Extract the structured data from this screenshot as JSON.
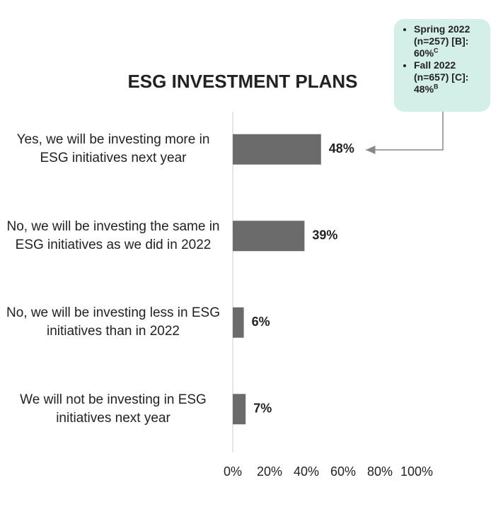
{
  "chart_data": {
    "type": "hbar",
    "title": "ESG INVESTMENT PLANS",
    "categories": [
      "Yes, we will be investing more in ESG initiatives next year",
      "No, we will be investing the same in ESG initiatives as we did in 2022",
      "No, we will be investing less in ESG initiatives than in 2022",
      "We will not be investing in ESG initiatives next year"
    ],
    "values": [
      48,
      39,
      6,
      7
    ],
    "value_labels": [
      "48%",
      "39%",
      "6%",
      "7%"
    ],
    "color": "#6b6b6b",
    "xlim": [
      0,
      100
    ],
    "xticks": [
      {
        "value": 0,
        "label": "0%"
      },
      {
        "value": 20,
        "label": "20%"
      },
      {
        "value": 40,
        "label": "40%"
      },
      {
        "value": 60,
        "label": "60%"
      },
      {
        "value": 80,
        "label": "80%"
      },
      {
        "value": 100,
        "label": "100%"
      }
    ],
    "annotation": [
      {
        "text": "Spring 2022 (n=257) [B]: 60%",
        "sup": "C"
      },
      {
        "text": "Fall 2022 (n=657) [C]: 48%",
        "sup": "B"
      }
    ]
  }
}
